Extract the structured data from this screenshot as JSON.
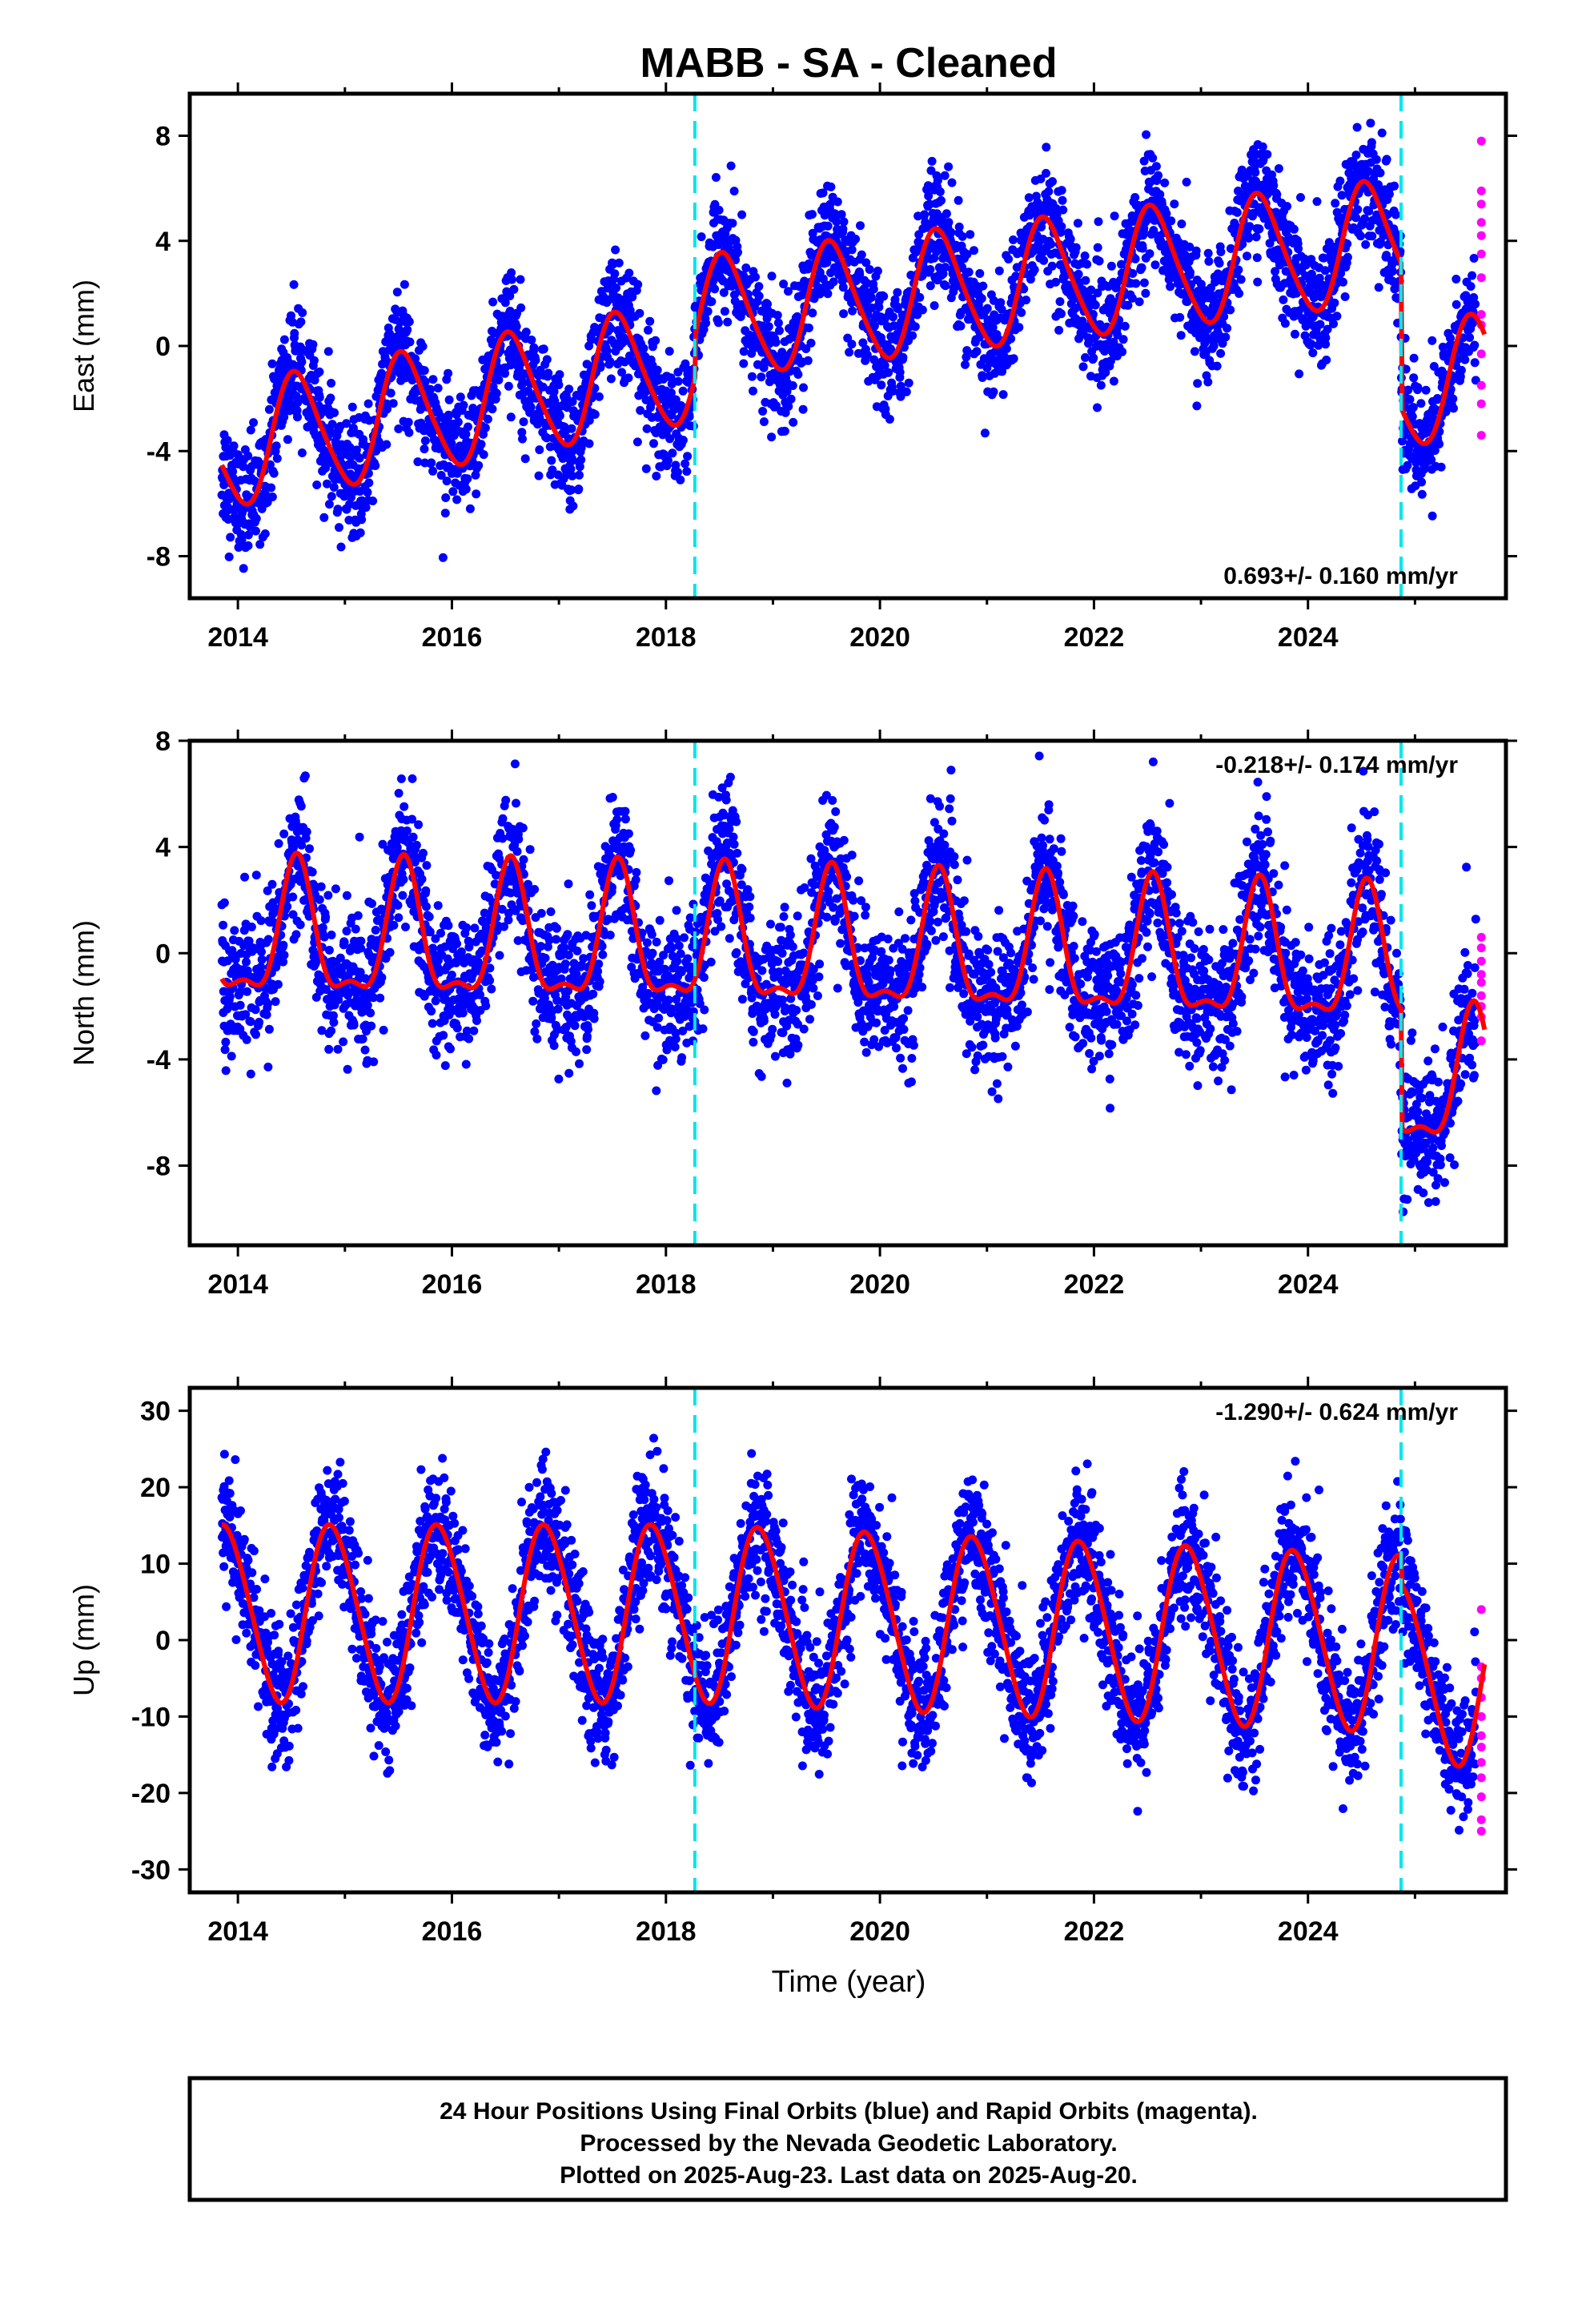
{
  "title": "MABB  - SA - Cleaned",
  "x_axis_label": "Time (year)",
  "footer": {
    "line1": "24 Hour Positions Using Final Orbits (blue) and Rapid Orbits (magenta).",
    "line2": "Processed by the Nevada Geodetic Laboratory.",
    "line3": "Plotted on 2025-Aug-23. Last data on 2025-Aug-20."
  },
  "colors": {
    "final_orbits": "#0000ff",
    "rapid_orbits": "#ff00ff",
    "model_fit": "#ff0000",
    "equipment_change": "#00e5ee"
  },
  "chart_data": [
    {
      "type": "scatter",
      "panel": "east",
      "ylabel": "East (mm)",
      "rate_label": "0.693+/- 0.160 mm/yr",
      "rate_position": "bottom-right",
      "xlim": [
        2013.55,
        2025.85
      ],
      "ylim": [
        -9.6,
        9.6
      ],
      "xticks": [
        2014,
        2016,
        2018,
        2020,
        2022,
        2024
      ],
      "yticks": [
        -8,
        -4,
        0,
        4,
        8
      ],
      "vertical_lines": [
        2018.27,
        2024.87
      ],
      "model": {
        "annual_amplitude": 2.3,
        "annual_phase_year": 2014.55,
        "semiannual_amplitude": 0.3,
        "semiannual_phase_year": 2014.45,
        "intercept_at_2014": -3.8,
        "pre_break_rate_mm_yr": 0.75,
        "offset_at_2018_27": 1.6,
        "post_break_rate_mm_yr": 0.45,
        "offset_at_2024_87": -5.5,
        "start": 2013.85,
        "end": 2025.65
      },
      "scatter_sd": 1.1,
      "rapid_points": [
        {
          "x": 2025.62,
          "y": 7.8
        },
        {
          "x": 2025.62,
          "y": 5.9
        },
        {
          "x": 2025.62,
          "y": 5.4
        },
        {
          "x": 2025.62,
          "y": 4.7
        },
        {
          "x": 2025.62,
          "y": 4.2
        },
        {
          "x": 2025.62,
          "y": 3.5
        },
        {
          "x": 2025.62,
          "y": 2.6
        },
        {
          "x": 2025.62,
          "y": 1.2
        },
        {
          "x": 2025.62,
          "y": 0.8
        },
        {
          "x": 2025.62,
          "y": -0.3
        },
        {
          "x": 2025.62,
          "y": -1.5
        },
        {
          "x": 2025.62,
          "y": -2.2
        },
        {
          "x": 2025.62,
          "y": -3.4
        }
      ]
    },
    {
      "type": "scatter",
      "panel": "north",
      "ylabel": "North (mm)",
      "rate_label": "-0.218+/- 0.174 mm/yr",
      "rate_position": "top-right",
      "xlim": [
        2013.55,
        2025.85
      ],
      "ylim": [
        -11.0,
        8.0
      ],
      "xticks": [
        2014,
        2016,
        2018,
        2020,
        2022,
        2024
      ],
      "yticks": [
        -8,
        -4,
        0,
        4,
        8
      ],
      "vertical_lines": [
        2018.27,
        2024.87
      ],
      "model": {
        "annual_amplitude": 2.4,
        "annual_phase_year": 2014.55,
        "semiannual_amplitude": 0.9,
        "semiannual_phase_year": 2014.55,
        "intercept_at_2014": 0.5,
        "pre_break_rate_mm_yr": -0.05,
        "offset_at_2018_27": 0.0,
        "post_break_rate_mm_yr": -0.12,
        "offset_at_2024_87": -4.5,
        "start": 2013.85,
        "end": 2025.65
      },
      "scatter_sd": 1.3,
      "rapid_points": [
        {
          "x": 2025.62,
          "y": 0.6
        },
        {
          "x": 2025.62,
          "y": 0.2
        },
        {
          "x": 2025.62,
          "y": -0.3
        },
        {
          "x": 2025.62,
          "y": -0.8
        },
        {
          "x": 2025.62,
          "y": -1.1
        },
        {
          "x": 2025.62,
          "y": -1.6
        },
        {
          "x": 2025.62,
          "y": -2.0
        },
        {
          "x": 2025.62,
          "y": -2.4
        },
        {
          "x": 2025.62,
          "y": -3.3
        }
      ]
    },
    {
      "type": "scatter",
      "panel": "up",
      "ylabel": "Up (mm)",
      "rate_label": "-1.290+/- 0.624 mm/yr",
      "rate_position": "top-right",
      "xlim": [
        2013.55,
        2025.85
      ],
      "ylim": [
        -33.0,
        33.0
      ],
      "xticks": [
        2014,
        2016,
        2018,
        2020,
        2022,
        2024
      ],
      "yticks": [
        -30,
        -20,
        -10,
        0,
        10,
        20,
        30
      ],
      "vertical_lines": [
        2018.27,
        2024.87
      ],
      "model": {
        "annual_amplitude": 11.5,
        "annual_phase_year": 2014.88,
        "semiannual_amplitude": 1.0,
        "semiannual_phase_year": 2014.75,
        "intercept_at_2014": 3.5,
        "pre_break_rate_mm_yr": 0.0,
        "offset_at_2018_27": 0.0,
        "post_break_rate_mm_yr": -0.6,
        "offset_at_2024_87": -4.0,
        "start": 2013.85,
        "end": 2025.65
      },
      "scatter_sd": 4.2,
      "rapid_points": [
        {
          "x": 2025.62,
          "y": 4.0
        },
        {
          "x": 2025.62,
          "y": -3.5
        },
        {
          "x": 2025.62,
          "y": -5.0
        },
        {
          "x": 2025.62,
          "y": -7.5
        },
        {
          "x": 2025.62,
          "y": -10.0
        },
        {
          "x": 2025.62,
          "y": -12.5
        },
        {
          "x": 2025.62,
          "y": -14.0
        },
        {
          "x": 2025.62,
          "y": -16.0
        },
        {
          "x": 2025.62,
          "y": -18.0
        },
        {
          "x": 2025.62,
          "y": -20.5
        },
        {
          "x": 2025.62,
          "y": -23.5
        },
        {
          "x": 2025.62,
          "y": -25.0
        }
      ]
    }
  ]
}
